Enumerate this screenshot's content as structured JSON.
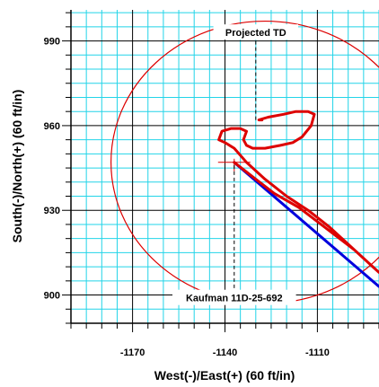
{
  "chart_data": {
    "type": "line",
    "xlabel": "West(-)/East(+) (60 ft/in)",
    "ylabel": "South(-)/North(+) (60 ft/in)",
    "xlim": [
      -1190,
      -1090
    ],
    "ylim": [
      890,
      1001
    ],
    "x_ticks": [
      -1170,
      -1140,
      -1110
    ],
    "y_ticks": [
      900,
      930,
      960,
      990
    ],
    "grid": true,
    "annotations": [
      {
        "text": "Projected TD",
        "x": -1130,
        "y": 993,
        "target": [
          -1130,
          962
        ]
      },
      {
        "text": "Kaufman 11D-25-692",
        "x": -1137,
        "y": 899,
        "target": [
          -1137,
          946
        ]
      }
    ],
    "circle": {
      "center": [
        -1127,
        947
      ],
      "radius": 50
    },
    "series": [
      {
        "color": "#0000dd",
        "x": [
          -1137,
          -1090
        ],
        "y": [
          947,
          903
        ]
      },
      {
        "color": "#dd0000",
        "x": [
          -1137,
          -1130,
          -1124,
          -1116,
          -1110,
          -1104,
          -1098,
          -1093,
          -1090,
          -1092,
          -1099,
          -1106,
          -1113,
          -1120,
          -1127,
          -1133,
          -1137,
          -1140,
          -1142,
          -1141,
          -1138,
          -1135,
          -1133,
          -1134,
          -1133,
          -1131,
          -1127,
          -1122,
          -1118,
          -1115,
          -1112,
          -1111,
          -1113,
          -1117,
          -1121,
          -1126,
          -1129,
          -1128
        ],
        "y": [
          947,
          941,
          936,
          931,
          926,
          921,
          916,
          911,
          908,
          910,
          917,
          924,
          930,
          935,
          941,
          947,
          952,
          954,
          955,
          958,
          959,
          959,
          958,
          955,
          953,
          952,
          952,
          953,
          954,
          956,
          960,
          964,
          965,
          965,
          964,
          963,
          962,
          962
        ]
      }
    ]
  }
}
